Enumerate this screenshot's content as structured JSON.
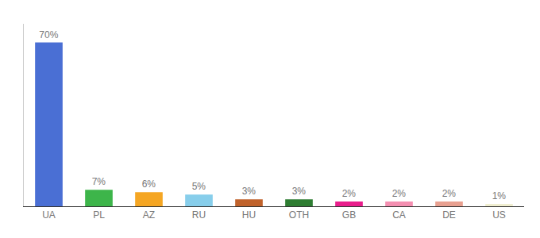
{
  "chart_data": {
    "type": "bar",
    "categories": [
      "UA",
      "PL",
      "AZ",
      "RU",
      "HU",
      "OTH",
      "GB",
      "CA",
      "DE",
      "US"
    ],
    "values": [
      70,
      7,
      6,
      5,
      3,
      3,
      2,
      2,
      2,
      1
    ],
    "value_labels": [
      "70%",
      "7%",
      "6%",
      "5%",
      "3%",
      "3%",
      "2%",
      "2%",
      "2%",
      "1%"
    ],
    "colors": [
      "#4A6FD4",
      "#3DB54A",
      "#F5A623",
      "#87CEEB",
      "#C0622B",
      "#2E7D32",
      "#E91E8C",
      "#F48FB1",
      "#E8A090",
      "#F0EED0"
    ],
    "ylim": [
      0,
      78
    ],
    "data_labels": true,
    "tick_labels": "x",
    "grid": false
  }
}
